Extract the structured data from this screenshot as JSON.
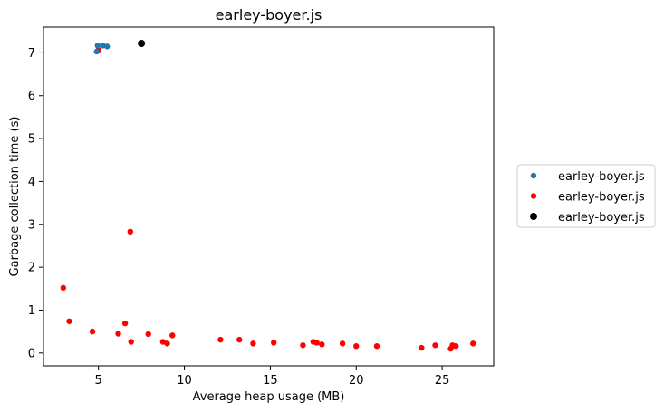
{
  "chart_data": {
    "type": "scatter",
    "title": "earley-boyer.js",
    "xlabel": "Average heap usage (MB)",
    "ylabel": "Garbage collection time (s)",
    "xlim": [
      1.8,
      28.0
    ],
    "ylim": [
      -0.3,
      7.6
    ],
    "xticks": [
      5,
      10,
      15,
      20,
      25
    ],
    "yticks": [
      0,
      1,
      2,
      3,
      4,
      5,
      6,
      7
    ],
    "grid": false,
    "legend_position": "center-right, outside plot",
    "series": [
      {
        "name": "earley-boyer.js",
        "color": "#1f77b4",
        "points": [
          {
            "x": 4.9,
            "y": 7.03
          },
          {
            "x": 4.95,
            "y": 7.17
          },
          {
            "x": 5.25,
            "y": 7.17
          },
          {
            "x": 5.5,
            "y": 7.15
          }
        ]
      },
      {
        "name": "earley-boyer.js",
        "color": "#ff0000",
        "points": [
          {
            "x": 5.0,
            "y": 7.07
          },
          {
            "x": 2.95,
            "y": 1.52
          },
          {
            "x": 3.3,
            "y": 0.74
          },
          {
            "x": 4.65,
            "y": 0.5
          },
          {
            "x": 6.15,
            "y": 0.45
          },
          {
            "x": 6.55,
            "y": 0.69
          },
          {
            "x": 6.85,
            "y": 2.83
          },
          {
            "x": 6.9,
            "y": 0.26
          },
          {
            "x": 7.9,
            "y": 0.44
          },
          {
            "x": 8.75,
            "y": 0.26
          },
          {
            "x": 9.0,
            "y": 0.22
          },
          {
            "x": 9.3,
            "y": 0.41
          },
          {
            "x": 12.1,
            "y": 0.31
          },
          {
            "x": 13.2,
            "y": 0.31
          },
          {
            "x": 14.0,
            "y": 0.22
          },
          {
            "x": 15.2,
            "y": 0.24
          },
          {
            "x": 16.9,
            "y": 0.18
          },
          {
            "x": 17.5,
            "y": 0.26
          },
          {
            "x": 17.7,
            "y": 0.24
          },
          {
            "x": 18.0,
            "y": 0.2
          },
          {
            "x": 19.2,
            "y": 0.22
          },
          {
            "x": 20.0,
            "y": 0.16
          },
          {
            "x": 21.2,
            "y": 0.16
          },
          {
            "x": 23.8,
            "y": 0.12
          },
          {
            "x": 24.6,
            "y": 0.18
          },
          {
            "x": 25.5,
            "y": 0.1
          },
          {
            "x": 25.6,
            "y": 0.18
          },
          {
            "x": 25.8,
            "y": 0.16
          },
          {
            "x": 26.8,
            "y": 0.22
          }
        ]
      },
      {
        "name": "earley-boyer.js",
        "color": "#000000",
        "points": [
          {
            "x": 7.5,
            "y": 7.22
          }
        ]
      }
    ]
  }
}
